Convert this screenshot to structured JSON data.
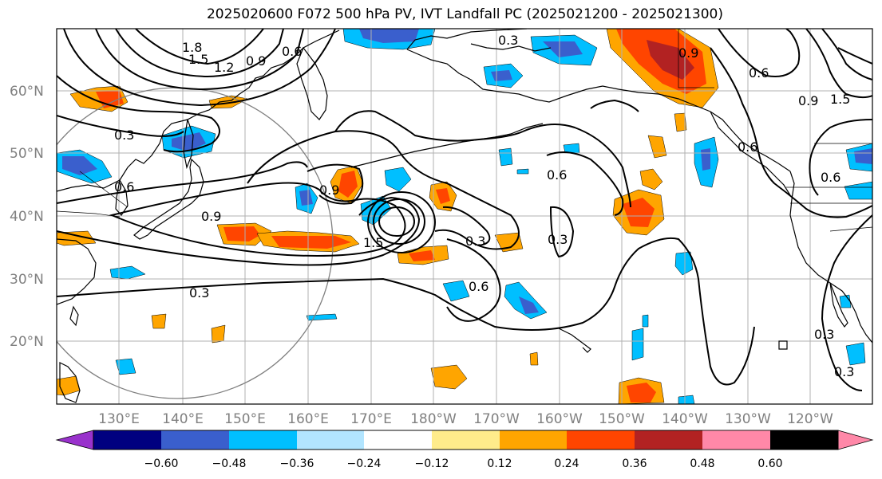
{
  "title": "2025020600 F072 500 hPa PV, IVT Landfall PC (2025021200 - 2025021300)",
  "lat_labels": [
    "60°N",
    "50°N",
    "40°N",
    "30°N",
    "20°N"
  ],
  "lon_labels": [
    "130°E",
    "140°E",
    "150°E",
    "160°E",
    "170°E",
    "180°W",
    "170°W",
    "160°W",
    "150°W",
    "140°W",
    "130°W",
    "120°W"
  ],
  "colorbar": {
    "ticks": [
      "−0.60",
      "−0.48",
      "−0.36",
      "−0.24",
      "−0.12",
      "0.12",
      "0.24",
      "0.36",
      "0.48",
      "0.60"
    ],
    "colors": [
      "#9932cc",
      "#000080",
      "#3a5fcd",
      "#00bfff",
      "#b2e5ff",
      "#ffffff",
      "#ffec8b",
      "#ffa500",
      "#ff4500",
      "#b22222",
      "#ff88a8"
    ]
  },
  "pv_labels": [
    "1.8",
    "1.5",
    "1.2",
    "0.9",
    "0.6",
    "0.3",
    "0.3",
    "0.6",
    "0.9",
    "0.9",
    "1.5",
    "0.3",
    "0.6",
    "0.3",
    "0.6",
    "0.3",
    "0.9",
    "0.6",
    "0.6",
    "0.6",
    "0.3",
    "0.3",
    "0.9",
    "1.5"
  ]
}
